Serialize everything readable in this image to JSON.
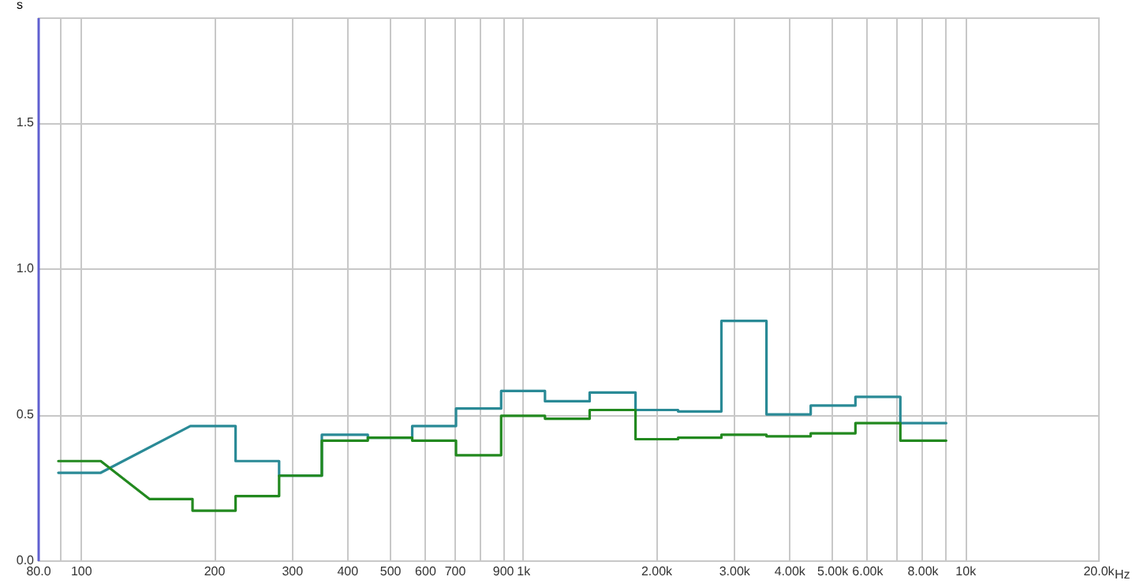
{
  "chart_data": {
    "type": "line",
    "ylabel": "s",
    "log": "x",
    "xlabel": "Hz",
    "grid": true,
    "marker": "none",
    "line_style": "solid",
    "xlim": [
      80,
      20000
    ],
    "xticks": [
      {
        "value": 80,
        "label": "80.0"
      },
      {
        "value": 90,
        "label": null
      },
      100,
      200,
      300,
      400,
      500,
      600,
      700,
      {
        "value": 800,
        "label": null
      },
      900,
      {
        "value": 1000,
        "label": "1k"
      },
      {
        "value": 2000,
        "label": "2.00k"
      },
      {
        "value": 3000,
        "label": "3.00k"
      },
      {
        "value": 4000,
        "label": "4.00k"
      },
      {
        "value": 5000,
        "label": "5.00k"
      },
      {
        "value": 6000,
        "label": "6.00k"
      },
      {
        "value": 7000,
        "label": null
      },
      {
        "value": 8000,
        "label": "8.00k"
      },
      {
        "value": 9000,
        "label": null
      },
      {
        "value": 10000,
        "label": "10k"
      },
      {
        "value": 20000,
        "label": "20.0k"
      }
    ],
    "ylim": [
      0,
      1.86
    ],
    "yticks": [
      {
        "value": 0,
        "label": "0.0"
      },
      {
        "value": 0.5,
        "label": "0.5"
      },
      {
        "value": 1,
        "label": "1.0"
      },
      {
        "value": 1.5,
        "label": "1.5"
      }
    ],
    "series": [
      {
        "color": "#2a8a96",
        "x": [
          89,
          111,
          177,
          224,
          224,
          281,
          281,
          351,
          351,
          446,
          446,
          562,
          562,
          706,
          706,
          893,
          893,
          1122,
          1122,
          1416,
          1416,
          1798,
          1798,
          2244,
          2244,
          2812,
          2812,
          3556,
          3556,
          4477,
          4477,
          5651,
          5651,
          7140,
          7140,
          9064
        ],
        "values": [
          0.3,
          0.3,
          0.46,
          0.46,
          0.34,
          0.34,
          0.29,
          0.29,
          0.43,
          0.43,
          0.42,
          0.42,
          0.46,
          0.46,
          0.52,
          0.52,
          0.58,
          0.58,
          0.545,
          0.545,
          0.575,
          0.575,
          0.515,
          0.515,
          0.51,
          0.51,
          0.82,
          0.82,
          0.5,
          0.5,
          0.53,
          0.53,
          0.56,
          0.56,
          0.47,
          0.47
        ]
      },
      {
        "color": "#22891f",
        "x": [
          89,
          111,
          143,
          179,
          179,
          224,
          224,
          281,
          281,
          351,
          351,
          446,
          446,
          562,
          562,
          706,
          706,
          893,
          893,
          1122,
          1122,
          1416,
          1416,
          1798,
          1798,
          2244,
          2244,
          2812,
          2812,
          3556,
          3556,
          4477,
          4477,
          5651,
          5651,
          7140,
          7140,
          9064
        ],
        "values": [
          0.34,
          0.34,
          0.21,
          0.21,
          0.17,
          0.17,
          0.22,
          0.22,
          0.29,
          0.29,
          0.41,
          0.41,
          0.42,
          0.42,
          0.41,
          0.41,
          0.36,
          0.36,
          0.495,
          0.495,
          0.485,
          0.485,
          0.515,
          0.515,
          0.415,
          0.415,
          0.42,
          0.42,
          0.43,
          0.43,
          0.425,
          0.425,
          0.435,
          0.435,
          0.47,
          0.47,
          0.41,
          0.41
        ]
      }
    ]
  }
}
